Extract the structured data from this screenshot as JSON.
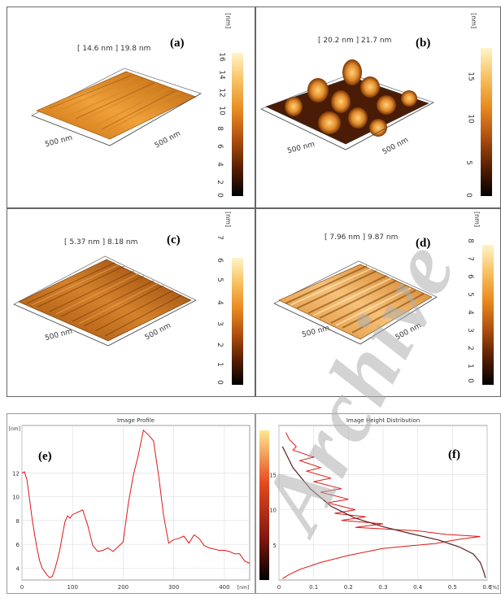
{
  "panels": {
    "a": {
      "label": "(a)",
      "range": "[ 14.6 nm ] 19.8 nm",
      "axis1": "500 nm",
      "axis2": "500 nm",
      "unit": "[nm]",
      "ticks": [
        "16",
        "14",
        "12",
        "10",
        "8",
        "6",
        "4",
        "2",
        "0"
      ]
    },
    "b": {
      "label": "(b)",
      "range": "[ 20.2 nm ] 21.7 nm",
      "axis1": "500 nm",
      "axis2": "500 nm",
      "unit": "[nm]",
      "ticks": [
        "15",
        "10",
        "5",
        "0"
      ]
    },
    "c": {
      "label": "(c)",
      "range": "[ 5.37 nm ] 8.18 nm",
      "axis1": "500 nm",
      "axis2": "500 nm",
      "unit": "[nm]",
      "ticks": [
        "7",
        "6",
        "5",
        "4",
        "3",
        "2",
        "1",
        "0"
      ]
    },
    "d": {
      "label": "(d)",
      "range": "[ 7.96 nm ] 9.87 nm",
      "axis1": "500 nm",
      "axis2": "500 nm",
      "unit": "[nm]",
      "ticks": [
        "8",
        "7",
        "6",
        "5",
        "4",
        "3",
        "2",
        "1",
        "0"
      ]
    }
  },
  "chart_data": [
    {
      "type": "line",
      "panel_label": "(e)",
      "title": "Image Profile",
      "xlabel": "[nm]",
      "ylabel": "[nm]",
      "xlim": [
        0,
        450
      ],
      "ylim": [
        3,
        16
      ],
      "xticks": [
        "0",
        "100",
        "200",
        "300",
        "400"
      ],
      "yticks": [
        "4",
        "6",
        "8",
        "10",
        "12"
      ],
      "grid": true,
      "color": "#e01818",
      "x": [
        0,
        5,
        10,
        15,
        20,
        25,
        30,
        35,
        40,
        45,
        50,
        55,
        60,
        65,
        70,
        75,
        80,
        85,
        90,
        95,
        100,
        110,
        120,
        130,
        140,
        150,
        160,
        170,
        180,
        190,
        200,
        210,
        220,
        230,
        240,
        250,
        260,
        270,
        280,
        290,
        300,
        310,
        320,
        330,
        340,
        350,
        360,
        370,
        380,
        390,
        400,
        410,
        420,
        430,
        440,
        450
      ],
      "y": [
        12,
        12.1,
        11.4,
        9.8,
        8.2,
        6.8,
        5.6,
        4.6,
        4,
        3.7,
        3.4,
        3.2,
        3.3,
        3.9,
        4.7,
        5.6,
        6.8,
        7.9,
        8.4,
        8.2,
        8.5,
        8.7,
        8.9,
        7.6,
        5.9,
        5.4,
        5.5,
        5.7,
        5.4,
        5.8,
        6.2,
        9.4,
        11.8,
        13.5,
        15.6,
        15.2,
        14.7,
        11.8,
        8.4,
        6.1,
        6.4,
        6.5,
        6.7,
        6.1,
        6.8,
        6.5,
        5.9,
        5.7,
        5.6,
        5.5,
        5.5,
        5.4,
        5.2,
        5.2,
        4.6,
        4.4
      ]
    },
    {
      "type": "line",
      "panel_label": "(f)",
      "title": "Image Height Distribution",
      "xlabel": "[%]",
      "ylabel": "",
      "xlim": [
        0,
        0.6
      ],
      "ylim": [
        0,
        22
      ],
      "xticks": [
        "0",
        "0.1",
        "0.2",
        "0.3",
        "0.4",
        "0.5",
        "0.6"
      ],
      "yticks": [
        "5",
        "10",
        "15"
      ],
      "grid": true,
      "series": [
        {
          "color": "#e01818",
          "style": "noisy histogram",
          "x": [
            0.02,
            0.03,
            0.05,
            0.04,
            0.1,
            0.06,
            0.12,
            0.08,
            0.15,
            0.1,
            0.18,
            0.12,
            0.2,
            0.14,
            0.22,
            0.16,
            0.25,
            0.18,
            0.3,
            0.22,
            0.4,
            0.48,
            0.58,
            0.52,
            0.45,
            0.3,
            0.2,
            0.12,
            0.06,
            0.03,
            0.01
          ],
          "y": [
            21,
            20,
            19,
            18.5,
            17.5,
            17,
            16,
            15.5,
            14.5,
            14,
            13,
            12.5,
            11.5,
            11,
            10,
            9.5,
            9,
            8.5,
            8,
            7.5,
            7,
            6.5,
            6.2,
            5.8,
            5.2,
            4.5,
            3.5,
            2.5,
            1.5,
            0.8,
            0.2
          ]
        },
        {
          "color": "#5a1f1f",
          "style": "smooth fit",
          "x": [
            0.01,
            0.04,
            0.09,
            0.15,
            0.22,
            0.3,
            0.38,
            0.46,
            0.52,
            0.56,
            0.58,
            0.59,
            0.595
          ],
          "y": [
            19,
            16,
            13,
            10.5,
            8.8,
            7.6,
            6.6,
            5.7,
            4.7,
            3.7,
            2.5,
            1.2,
            0.3
          ]
        }
      ]
    }
  ],
  "watermark": "Archive"
}
